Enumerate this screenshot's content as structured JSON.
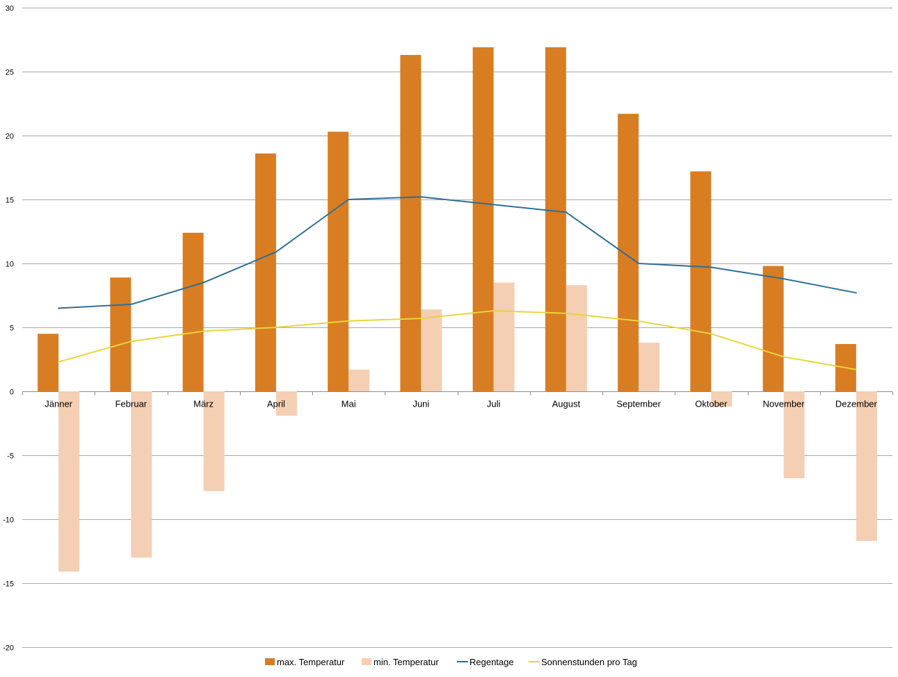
{
  "chart_data": {
    "type": "bar",
    "categories": [
      "Jänner",
      "Februar",
      "März",
      "April",
      "Mai",
      "Juni",
      "Juli",
      "August",
      "September",
      "Oktober",
      "November",
      "Dezember"
    ],
    "ylim": [
      -20,
      30
    ],
    "yticks": [
      "-20",
      "-15",
      "-10",
      "-5",
      "0",
      "5",
      "10",
      "15",
      "20",
      "25",
      "30"
    ],
    "grid": true,
    "legend_position": "bottom",
    "series": [
      {
        "name": "max. Temperatur",
        "type": "bar",
        "color": "#D97D22",
        "values": [
          4.5,
          8.9,
          12.4,
          18.6,
          20.3,
          26.3,
          26.9,
          26.9,
          21.7,
          17.2,
          9.8,
          3.7
        ]
      },
      {
        "name": "min. Temperatur",
        "type": "bar",
        "color": "#F4CFB3",
        "values": [
          -14.1,
          -13.0,
          -7.8,
          -1.9,
          1.7,
          6.4,
          8.5,
          8.3,
          3.8,
          -1.2,
          -6.8,
          -11.7
        ]
      },
      {
        "name": "Regentage",
        "type": "line",
        "color": "#2E6E96",
        "values": [
          6.5,
          6.8,
          8.5,
          10.9,
          15.0,
          15.2,
          14.6,
          14.0,
          10.0,
          9.7,
          8.8,
          7.7
        ]
      },
      {
        "name": "Sonnenstunden pro Tag",
        "type": "line",
        "color": "#E8D53C",
        "values": [
          2.3,
          3.9,
          4.7,
          5.0,
          5.5,
          5.7,
          6.3,
          6.1,
          5.5,
          4.5,
          2.7,
          1.7
        ]
      }
    ]
  }
}
